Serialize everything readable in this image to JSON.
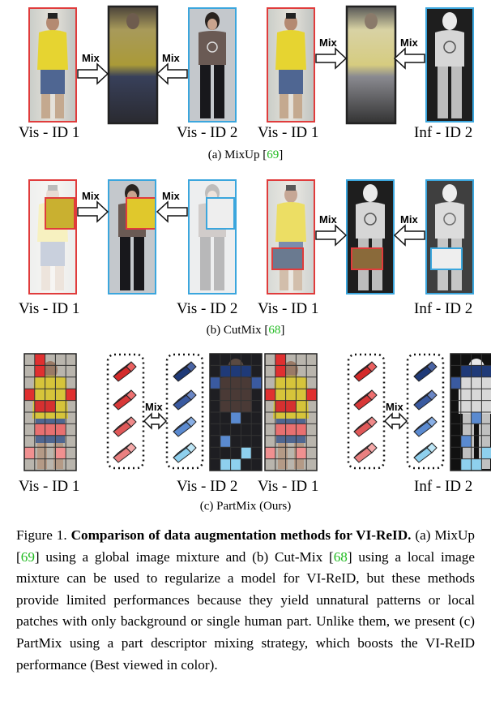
{
  "row_a": {
    "left_vis_label": "Vis - ID 1",
    "right_vis_label": "Vis - ID 2",
    "cross_vis_label": "Vis - ID 1",
    "cross_inf_label": "Inf - ID 2",
    "mix_label": "Mix",
    "subcaption_text": "(a) MixUp [",
    "subcaption_cite": "69",
    "subcaption_end": "]"
  },
  "row_b": {
    "left_vis_label": "Vis - ID 1",
    "right_vis_label": "Vis - ID 2",
    "cross_vis_label": "Vis - ID 1",
    "cross_inf_label": "Inf - ID 2",
    "mix_label": "Mix",
    "subcaption_text": "(b) CutMix [",
    "subcaption_cite": "68",
    "subcaption_end": "]"
  },
  "row_c": {
    "left_vis_label": "Vis - ID 1",
    "right_vis_label": "Vis - ID 2",
    "cross_vis_label": "Vis - ID 1",
    "cross_inf_label": "Inf - ID 2",
    "mix_label": "Mix",
    "subcaption_text": "(c) PartMix (Ours)"
  },
  "caption": {
    "prefix": "Figure 1. ",
    "bold": "Comparison of data augmentation methods for VI-ReID.",
    "t1": " (a) MixUp [",
    "c1": "69",
    "t2": "] using a global image mixture and (b) Cut-Mix [",
    "c2": "68",
    "t3": "] using a local image mixture can be used to regularize a model for VI-ReID, but these methods provide limited performances because they yield unnatural patterns or local patches with only background or single human part. Unlike them, we present (c) PartMix using a part descriptor mixing strategy, which boosts the VI-ReID performance (Best viewed in color)."
  },
  "colors": {
    "visible_border": "#e03c3c",
    "other_border": "#3ba6dd",
    "citation": "#22bb22"
  }
}
